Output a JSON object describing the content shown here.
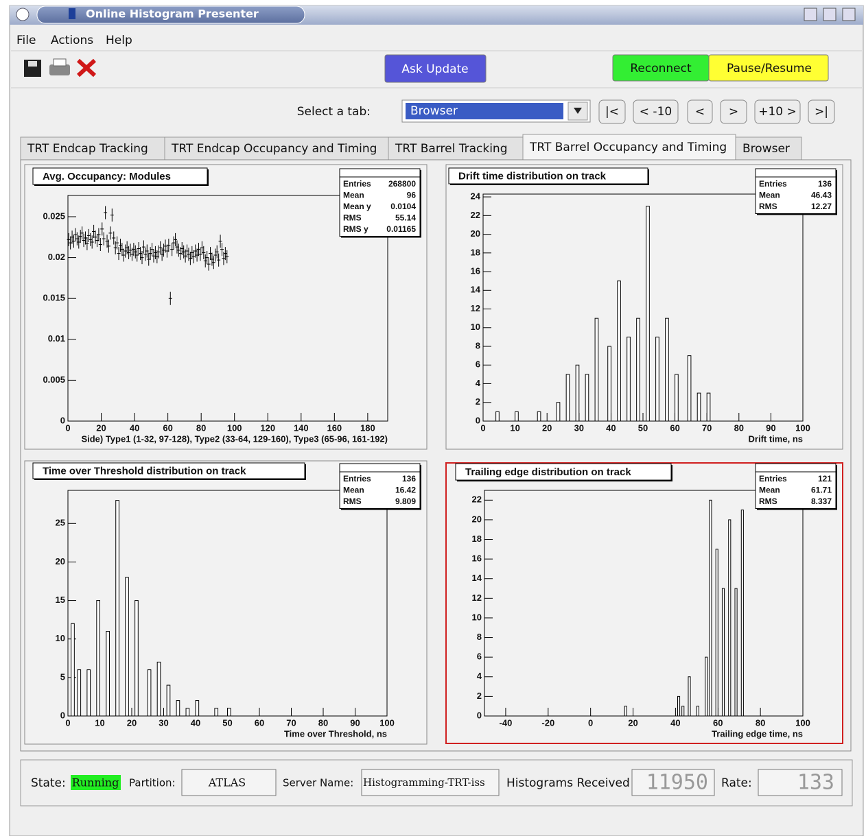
{
  "window": {
    "title": "Online Histogram Presenter"
  },
  "menu": [
    "File",
    "Actions",
    "Help"
  ],
  "toolbar": {
    "buttons": [
      "Ask Update",
      "Reconnect",
      "Pause/Resume"
    ]
  },
  "tab_selector": {
    "label": "Select a tab:",
    "value": "Browser",
    "nav": [
      "|<",
      "< -10",
      "<",
      ">",
      "+10 >",
      ">|"
    ]
  },
  "tabs": [
    "TRT Endcap Tracking",
    "TRT Endcap Occupancy and Timing",
    "TRT Barrel Tracking",
    "TRT Barrel Occupancy and Timing",
    "Browser"
  ],
  "chart_data": [
    {
      "type": "scatter",
      "title": "Avg. Occupancy: Modules",
      "x_label": "Side) Type1 (1-32, 97-128), Type2 (33-64, 129-160), Type3 (65-96, 161-192)",
      "stats": [
        {
          "name": "Entries",
          "value": 268800
        },
        {
          "name": "Mean",
          "value": 96
        },
        {
          "name": "Mean y",
          "value": 0.0104
        },
        {
          "name": "RMS",
          "value": 55.14
        },
        {
          "name": "RMS y",
          "value": 0.01165
        }
      ],
      "xlim": [
        0,
        192
      ],
      "xticks": [
        0,
        20,
        40,
        60,
        80,
        100,
        120,
        140,
        160,
        180
      ],
      "ylim": [
        0,
        0.0276
      ],
      "yticks": [
        0,
        0.005,
        0.01,
        0.015,
        0.02,
        0.025
      ],
      "x": [
        0.5,
        1.5,
        2.5,
        3.5,
        4.5,
        5.5,
        6.5,
        7.5,
        8.5,
        9.5,
        10.5,
        11.5,
        12.5,
        13.5,
        14.5,
        15.5,
        16.5,
        17.5,
        18.5,
        19.5,
        20.5,
        21.5,
        22.5,
        23.5,
        24.5,
        25.5,
        26.5,
        27.5,
        28.5,
        29.5,
        30.5,
        31.5,
        32.5,
        33.5,
        34.5,
        35.5,
        36.5,
        37.5,
        38.5,
        39.5,
        40.5,
        41.5,
        42.5,
        43.5,
        44.5,
        45.5,
        46.5,
        47.5,
        48.5,
        49.5,
        50.5,
        51.5,
        52.5,
        53.5,
        54.5,
        55.5,
        56.5,
        57.5,
        58.5,
        59.5,
        60.5,
        61.5,
        62.5,
        63.5,
        64.5,
        65.5,
        66.5,
        67.5,
        68.5,
        69.5,
        70.5,
        71.5,
        72.5,
        73.5,
        74.5,
        75.5,
        76.5,
        77.5,
        78.5,
        79.5,
        80.5,
        81.5,
        82.5,
        83.5,
        84.5,
        85.5,
        86.5,
        87.5,
        88.5,
        89.5,
        90.5,
        91.5,
        92.5,
        93.5,
        94.5,
        95.5
      ],
      "values": [
        0.0222,
        0.0218,
        0.0225,
        0.022,
        0.0228,
        0.0223,
        0.0219,
        0.0226,
        0.023,
        0.0221,
        0.0224,
        0.0217,
        0.0227,
        0.0222,
        0.0219,
        0.0232,
        0.0225,
        0.0221,
        0.0228,
        0.0216,
        0.0235,
        0.0223,
        0.0255,
        0.022,
        0.0214,
        0.023,
        0.0252,
        0.0224,
        0.0212,
        0.0218,
        0.0205,
        0.0215,
        0.021,
        0.0203,
        0.0208,
        0.0212,
        0.0206,
        0.0209,
        0.0204,
        0.021,
        0.0207,
        0.0203,
        0.0211,
        0.0205,
        0.02,
        0.0213,
        0.0204,
        0.0208,
        0.0198,
        0.0205,
        0.021,
        0.0202,
        0.0206,
        0.0201,
        0.0207,
        0.0212,
        0.0204,
        0.0209,
        0.0214,
        0.0208,
        0.0215,
        0.015,
        0.021,
        0.0218,
        0.0222,
        0.0213,
        0.0209,
        0.0205,
        0.0211,
        0.0207,
        0.0202,
        0.0208,
        0.0204,
        0.0199,
        0.0206,
        0.0201,
        0.0208,
        0.0203,
        0.021,
        0.0204,
        0.0212,
        0.0206,
        0.0196,
        0.02,
        0.0192,
        0.0205,
        0.0198,
        0.0194,
        0.0203,
        0.0207,
        0.0197,
        0.022,
        0.021,
        0.0199,
        0.0205,
        0.0201
      ],
      "error": 0.0008
    },
    {
      "type": "histogram",
      "title": "Drift time distribution on track",
      "x_label": "Drift time, ns",
      "stats": [
        {
          "name": "Entries",
          "value": 136
        },
        {
          "name": "Mean",
          "value": 46.43
        },
        {
          "name": "RMS",
          "value": 12.27
        }
      ],
      "xlim": [
        0,
        100
      ],
      "xticks": [
        0,
        10,
        20,
        30,
        40,
        50,
        60,
        70,
        80,
        90,
        100
      ],
      "ylim": [
        0,
        24.3
      ],
      "yticks": [
        0,
        2,
        4,
        6,
        8,
        10,
        12,
        14,
        16,
        18,
        20,
        22,
        24
      ],
      "bins": [
        0,
        4,
        5,
        10,
        11,
        17,
        18,
        23,
        24,
        26,
        27,
        29,
        30,
        32,
        33,
        35,
        36,
        39,
        40,
        42,
        43,
        45,
        46,
        48,
        49,
        51,
        52,
        54,
        55,
        57,
        58,
        60,
        61,
        64,
        65,
        67,
        68,
        70,
        71,
        100
      ],
      "counts": [
        0,
        1,
        0,
        1,
        0,
        1,
        0,
        2,
        0,
        5,
        0,
        6,
        0,
        5,
        0,
        11,
        0,
        8,
        0,
        15,
        0,
        9,
        0,
        11,
        0,
        23,
        0,
        9,
        0,
        11,
        0,
        5,
        0,
        7,
        0,
        3,
        0,
        3,
        0
      ]
    },
    {
      "type": "histogram",
      "title": "Time over Threshold distribution on track",
      "x_label": "Time over Threshold, ns",
      "stats": [
        {
          "name": "Entries",
          "value": 136
        },
        {
          "name": "Mean",
          "value": 16.42
        },
        {
          "name": "RMS",
          "value": 9.809
        }
      ],
      "xlim": [
        0,
        100
      ],
      "xticks": [
        0,
        10,
        20,
        30,
        40,
        50,
        60,
        70,
        80,
        90,
        100
      ],
      "ylim": [
        0,
        29.3
      ],
      "yticks": [
        0,
        5,
        10,
        15,
        20,
        25
      ],
      "bins": [
        0,
        1,
        2,
        3,
        4,
        6,
        7,
        9,
        10,
        12,
        13,
        15,
        16,
        18,
        19,
        21,
        22,
        25,
        26,
        28,
        29,
        31,
        32,
        34,
        35,
        37,
        38,
        40,
        41,
        46,
        47,
        50,
        51,
        100
      ],
      "counts": [
        0,
        12,
        0,
        6,
        0,
        6,
        0,
        15,
        0,
        11,
        0,
        28,
        0,
        18,
        0,
        15,
        0,
        6,
        0,
        7,
        0,
        4,
        0,
        2,
        0,
        1,
        0,
        2,
        0,
        1,
        0,
        1,
        0
      ]
    },
    {
      "type": "histogram",
      "title": "Trailing edge distribution on track",
      "x_label": "Trailing edge time, ns",
      "stats": [
        {
          "name": "Entries",
          "value": 121
        },
        {
          "name": "Mean",
          "value": 61.71
        },
        {
          "name": "RMS",
          "value": 8.337
        }
      ],
      "xlim": [
        -50,
        100
      ],
      "xticks": [
        -40,
        -20,
        0,
        20,
        40,
        60,
        80,
        100
      ],
      "ylim": [
        0,
        23
      ],
      "yticks": [
        0,
        2,
        4,
        6,
        8,
        10,
        12,
        14,
        16,
        18,
        20,
        22
      ],
      "bins": [
        -50,
        16,
        17,
        41,
        42,
        43,
        44,
        46,
        47,
        50,
        51,
        54,
        55,
        56,
        57,
        59,
        60,
        62,
        63,
        65,
        66,
        68,
        69,
        71,
        72,
        100
      ],
      "counts": [
        0,
        1,
        0,
        2,
        0,
        1,
        0,
        4,
        0,
        1,
        0,
        6,
        0,
        22,
        0,
        17,
        0,
        13,
        0,
        20,
        0,
        13,
        0,
        21,
        0
      ]
    }
  ],
  "status": {
    "state_label": "State:",
    "state": "Running",
    "partition_label": "Partition:",
    "partition": "ATLAS",
    "server_label": "Server Name:",
    "server": "Histogramming-TRT-iss",
    "received_label": "Histograms Received",
    "received": 11950,
    "rate_label": "Rate:",
    "rate": 133
  }
}
